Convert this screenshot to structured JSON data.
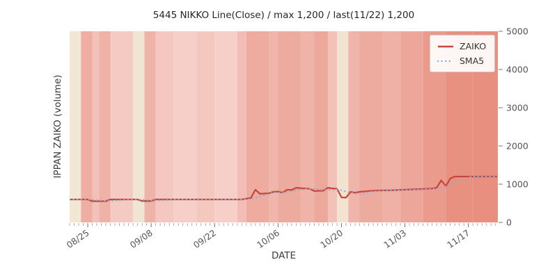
{
  "title": "5445 NIKKO Line(Close) / max 1,200 / last(11/22) 1,200",
  "chart_data": {
    "type": "line",
    "title": "5445 NIKKO Line(Close) / max 1,200 / last(11/22) 1,200",
    "xlabel": "DATE",
    "ylabel": "IPPAN ZAIKO (volume)",
    "ylim": [
      0,
      5000
    ],
    "yticks": [
      0,
      1000,
      2000,
      3000,
      4000,
      5000
    ],
    "x_day_range": [
      -1,
      93.5
    ],
    "xticks": [
      {
        "day": 3,
        "label": "08/25"
      },
      {
        "day": 17,
        "label": "09/08"
      },
      {
        "day": 31,
        "label": "09/22"
      },
      {
        "day": 45,
        "label": "10/06"
      },
      {
        "day": 59,
        "label": "10/20"
      },
      {
        "day": 73,
        "label": "11/03"
      },
      {
        "day": 87,
        "label": "11/17"
      }
    ],
    "legend_position": "upper right",
    "grid": false,
    "axis_text_color": "#555555",
    "series": [
      {
        "name": "ZAIKO",
        "color": "#c9473a",
        "style": "solid",
        "points": [
          [
            -1,
            600
          ],
          [
            3,
            600
          ],
          [
            4,
            555
          ],
          [
            7,
            555
          ],
          [
            8,
            600
          ],
          [
            14,
            600
          ],
          [
            15,
            560
          ],
          [
            17,
            560
          ],
          [
            18,
            600
          ],
          [
            37,
            600
          ],
          [
            38,
            620
          ],
          [
            39,
            640
          ],
          [
            40,
            855
          ],
          [
            41,
            750
          ],
          [
            42,
            755
          ],
          [
            43,
            760
          ],
          [
            44,
            800
          ],
          [
            45,
            805
          ],
          [
            46,
            780
          ],
          [
            47,
            855
          ],
          [
            48,
            850
          ],
          [
            49,
            905
          ],
          [
            50,
            895
          ],
          [
            52,
            880
          ],
          [
            53,
            820
          ],
          [
            54,
            825
          ],
          [
            55,
            830
          ],
          [
            56,
            905
          ],
          [
            57,
            890
          ],
          [
            58,
            880
          ],
          [
            59,
            655
          ],
          [
            60,
            650
          ],
          [
            61,
            800
          ],
          [
            62,
            775
          ],
          [
            63,
            800
          ],
          [
            64,
            810
          ],
          [
            66,
            830
          ],
          [
            67,
            835
          ],
          [
            70,
            840
          ],
          [
            73,
            855
          ],
          [
            74,
            860
          ],
          [
            78,
            880
          ],
          [
            79,
            885
          ],
          [
            80,
            905
          ],
          [
            81,
            1100
          ],
          [
            82,
            950
          ],
          [
            83,
            1150
          ],
          [
            84,
            1200
          ],
          [
            93.5,
            1200
          ]
        ]
      },
      {
        "name": "SMA5",
        "color": "#92aed6",
        "style": "dotted",
        "derived_from": "ZAIKO",
        "window_days": 5
      }
    ],
    "background_bands": [
      [
        -1,
        1.5,
        "#f1e7d3"
      ],
      [
        1.5,
        4,
        "#eeaea3"
      ],
      [
        4,
        5.5,
        "#f2c1b8"
      ],
      [
        5.5,
        8,
        "#efb2a7"
      ],
      [
        8,
        13,
        "#f4cac2"
      ],
      [
        13,
        15.5,
        "#f0e5d2"
      ],
      [
        15.5,
        18,
        "#efb4a9"
      ],
      [
        18,
        22,
        "#f4c8c0"
      ],
      [
        22,
        27,
        "#f6cfc8"
      ],
      [
        27,
        31,
        "#f4c7bf"
      ],
      [
        31,
        36,
        "#f6cfc8"
      ],
      [
        36,
        38,
        "#f1bdb4"
      ],
      [
        38,
        43,
        "#eeab9f"
      ],
      [
        43,
        45,
        "#f0b6ab"
      ],
      [
        45,
        50,
        "#edaa9e"
      ],
      [
        50,
        53,
        "#f0b3a8"
      ],
      [
        53,
        56,
        "#eda89c"
      ],
      [
        56,
        58,
        "#f2c2b9"
      ],
      [
        58,
        60.5,
        "#f0e4d1"
      ],
      [
        60.5,
        63,
        "#efb5aa"
      ],
      [
        63,
        68,
        "#edaba0"
      ],
      [
        68,
        72,
        "#efb1a5"
      ],
      [
        72,
        77,
        "#eda79a"
      ],
      [
        77,
        82,
        "#ea9b8c"
      ],
      [
        82,
        88,
        "#e89181"
      ],
      [
        88,
        93.5,
        "#e88f7f"
      ]
    ]
  }
}
